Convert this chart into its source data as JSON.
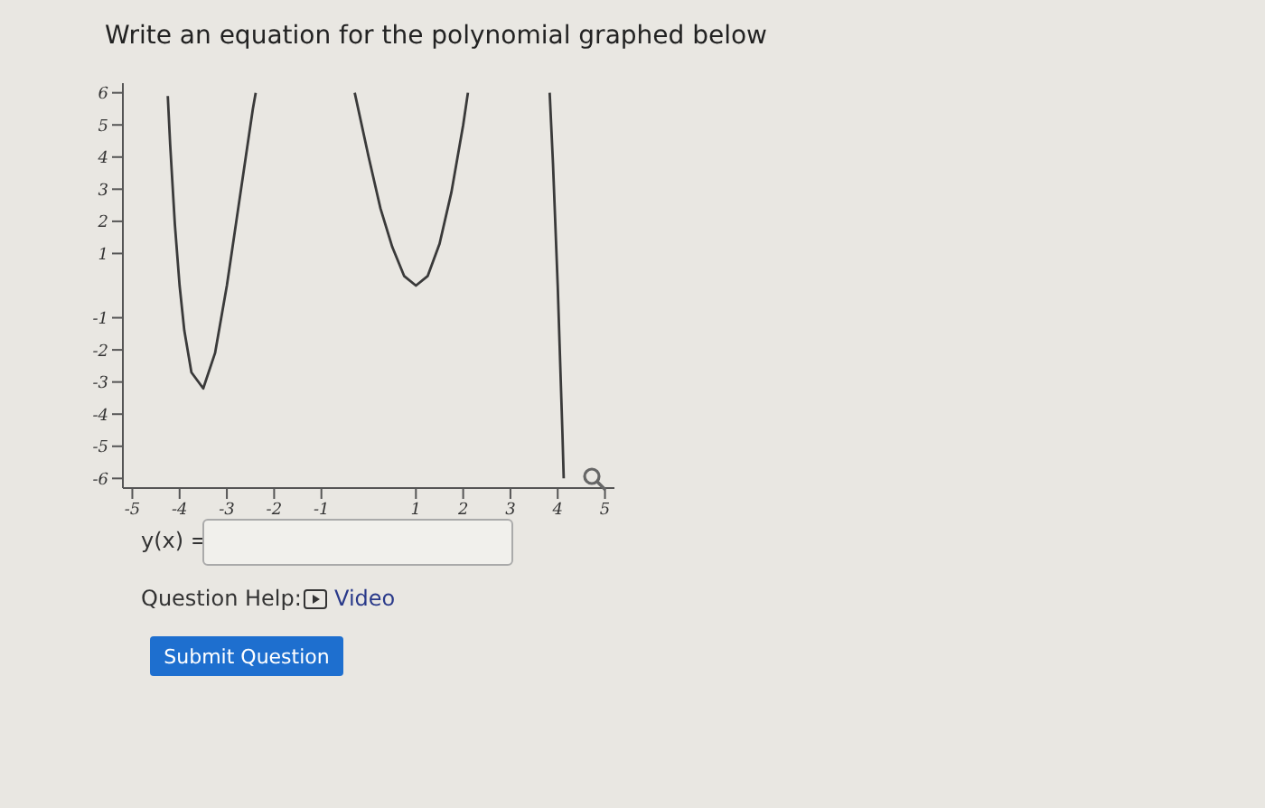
{
  "chart_data": {
    "type": "line",
    "title": "Write an equation for the polynomial graphed below",
    "x": [
      -4.25,
      -4.2,
      -4.1,
      -4,
      -3.9,
      -3.75,
      -3.5,
      -3.25,
      -3,
      -2.9,
      -2.8,
      -2.6,
      -2.45,
      -2.39,
      -1,
      -0.295,
      0,
      0.25,
      0.5,
      0.75,
      1,
      1.25,
      1.5,
      1.75,
      2,
      2.1,
      3,
      3.83,
      3.9,
      4,
      4.1,
      4.127
    ],
    "series": [
      {
        "color": "#3a3a3a",
        "values": [
          5.9,
          4.4,
          1.9,
          0,
          -1.4,
          -2.7,
          -3.2,
          -2.1,
          0,
          1.0,
          2.0,
          4.0,
          5.5,
          6.0,
          null,
          6.0,
          4.0,
          2.4,
          1.2,
          0.3,
          0,
          0.3,
          1.3,
          2.9,
          5.0,
          6.0,
          null,
          6.0,
          3.8,
          0,
          -4.6,
          -6.0
        ]
      }
    ],
    "xlim": [
      -5.2,
      5.2
    ],
    "ylim": [
      -6.3,
      6.3
    ],
    "xticks": [
      -5,
      -4,
      -3,
      -2,
      -1,
      1,
      2,
      3,
      4,
      5
    ],
    "yticks": [
      -6,
      -5,
      -4,
      -3,
      -2,
      -1,
      1,
      2,
      3,
      4,
      5,
      6
    ],
    "line_style": "solid",
    "annotations": [
      "y(x) =",
      "Question Help:",
      "Video",
      "Submit Question"
    ]
  }
}
